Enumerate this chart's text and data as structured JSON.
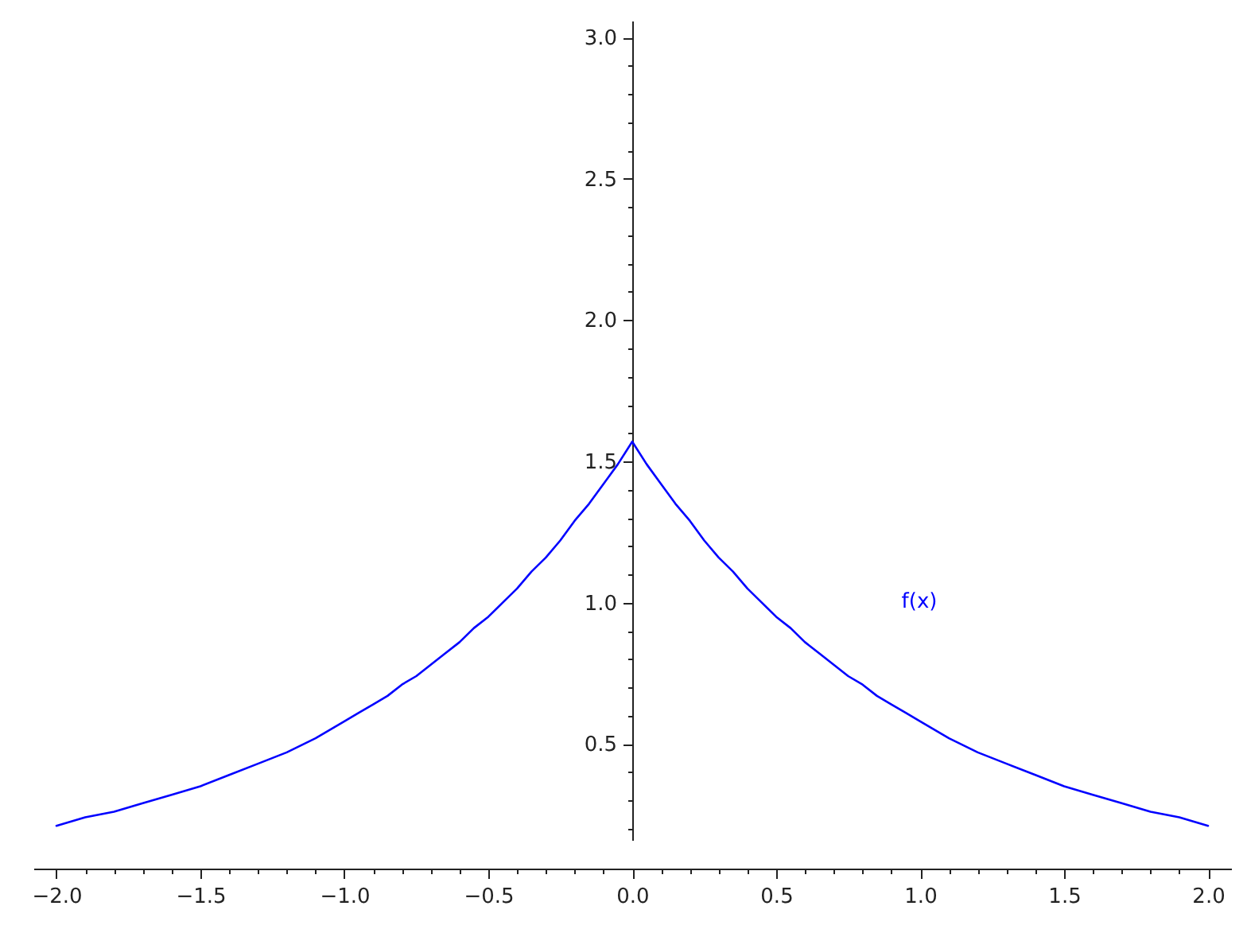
{
  "chart_data": {
    "type": "line",
    "x": [
      -2.0,
      -1.9,
      -1.8,
      -1.7,
      -1.6,
      -1.5,
      -1.4,
      -1.3,
      -1.2,
      -1.1,
      -1.0,
      -0.95,
      -0.9,
      -0.85,
      -0.8,
      -0.75,
      -0.7,
      -0.65,
      -0.6,
      -0.55,
      -0.5,
      -0.45,
      -0.4,
      -0.35,
      -0.3,
      -0.25,
      -0.2,
      -0.15,
      -0.1,
      -0.05,
      0.0,
      0.05,
      0.1,
      0.15,
      0.2,
      0.25,
      0.3,
      0.35,
      0.4,
      0.45,
      0.5,
      0.55,
      0.6,
      0.65,
      0.7,
      0.75,
      0.8,
      0.85,
      0.9,
      0.95,
      1.0,
      1.1,
      1.2,
      1.3,
      1.4,
      1.5,
      1.6,
      1.7,
      1.8,
      1.9,
      2.0
    ],
    "series": [
      {
        "color": "#0000ff",
        "values": [
          0.21,
          0.24,
          0.26,
          0.29,
          0.32,
          0.35,
          0.39,
          0.43,
          0.47,
          0.52,
          0.58,
          0.61,
          0.64,
          0.67,
          0.71,
          0.74,
          0.78,
          0.82,
          0.86,
          0.91,
          0.95,
          1.0,
          1.05,
          1.11,
          1.16,
          1.22,
          1.29,
          1.35,
          1.42,
          1.49,
          1.57,
          1.49,
          1.42,
          1.35,
          1.29,
          1.22,
          1.16,
          1.11,
          1.05,
          1.0,
          0.95,
          0.91,
          0.86,
          0.82,
          0.78,
          0.74,
          0.71,
          0.67,
          0.64,
          0.61,
          0.58,
          0.52,
          0.47,
          0.43,
          0.39,
          0.35,
          0.32,
          0.29,
          0.26,
          0.24,
          0.21
        ]
      }
    ],
    "xlim": [
      -2.08,
      2.08
    ],
    "ylim": [
      0.16,
      3.06
    ],
    "xticks": [
      {
        "value": -2.0,
        "label": "−2.0"
      },
      {
        "value": -1.9,
        "label": null
      },
      {
        "value": -1.8,
        "label": null
      },
      {
        "value": -1.7,
        "label": null
      },
      {
        "value": -1.6,
        "label": null
      },
      {
        "value": -1.5,
        "label": "−1.5"
      },
      {
        "value": -1.4,
        "label": null
      },
      {
        "value": -1.3,
        "label": null
      },
      {
        "value": -1.2,
        "label": null
      },
      {
        "value": -1.1,
        "label": null
      },
      {
        "value": -1.0,
        "label": "−1.0"
      },
      {
        "value": -0.9,
        "label": null
      },
      {
        "value": -0.8,
        "label": null
      },
      {
        "value": -0.7,
        "label": null
      },
      {
        "value": -0.6,
        "label": null
      },
      {
        "value": -0.5,
        "label": "−0.5"
      },
      {
        "value": -0.4,
        "label": null
      },
      {
        "value": -0.3,
        "label": null
      },
      {
        "value": -0.2,
        "label": null
      },
      {
        "value": -0.1,
        "label": null
      },
      {
        "value": 0.0,
        "label": "0.0"
      },
      {
        "value": 0.1,
        "label": null
      },
      {
        "value": 0.2,
        "label": null
      },
      {
        "value": 0.3,
        "label": null
      },
      {
        "value": 0.4,
        "label": null
      },
      0.5,
      {
        "value": 0.6,
        "label": null
      },
      {
        "value": 0.7,
        "label": null
      },
      {
        "value": 0.8,
        "label": null
      },
      {
        "value": 0.9,
        "label": null
      },
      {
        "value": 1.0,
        "label": "1.0"
      },
      {
        "value": 1.1,
        "label": null
      },
      {
        "value": 1.2,
        "label": null
      },
      {
        "value": 1.3,
        "label": null
      },
      {
        "value": 1.4,
        "label": null
      },
      1.5,
      {
        "value": 1.6,
        "label": null
      },
      {
        "value": 1.7,
        "label": null
      },
      {
        "value": 1.8,
        "label": null
      },
      {
        "value": 1.9,
        "label": null
      },
      {
        "value": 2.0,
        "label": "2.0"
      }
    ],
    "yticks": [
      {
        "value": 0.2,
        "label": null
      },
      {
        "value": 0.3,
        "label": null
      },
      {
        "value": 0.4,
        "label": null
      },
      0.5,
      {
        "value": 0.6,
        "label": null
      },
      {
        "value": 0.7,
        "label": null
      },
      {
        "value": 0.8,
        "label": null
      },
      {
        "value": 0.9,
        "label": null
      },
      {
        "value": 1.0,
        "label": "1.0"
      },
      {
        "value": 1.1,
        "label": null
      },
      {
        "value": 1.2,
        "label": null
      },
      {
        "value": 1.3,
        "label": null
      },
      {
        "value": 1.4,
        "label": null
      },
      1.5,
      {
        "value": 1.6,
        "label": null
      },
      {
        "value": 1.7,
        "label": null
      },
      {
        "value": 1.8,
        "label": null
      },
      {
        "value": 1.9,
        "label": null
      },
      {
        "value": 2.0,
        "label": "2.0"
      },
      {
        "value": 2.1,
        "label": null
      },
      {
        "value": 2.2,
        "label": null
      },
      {
        "value": 2.3,
        "label": null
      },
      {
        "value": 2.4,
        "label": null
      },
      2.5,
      {
        "value": 2.6,
        "label": null
      },
      {
        "value": 2.7,
        "label": null
      },
      {
        "value": 2.8,
        "label": null
      },
      {
        "value": 2.9,
        "label": null
      },
      {
        "value": 3.0,
        "label": "3.0"
      }
    ],
    "annotations": [
      "f(x)"
    ],
    "line_style": "solid",
    "grid": false
  }
}
